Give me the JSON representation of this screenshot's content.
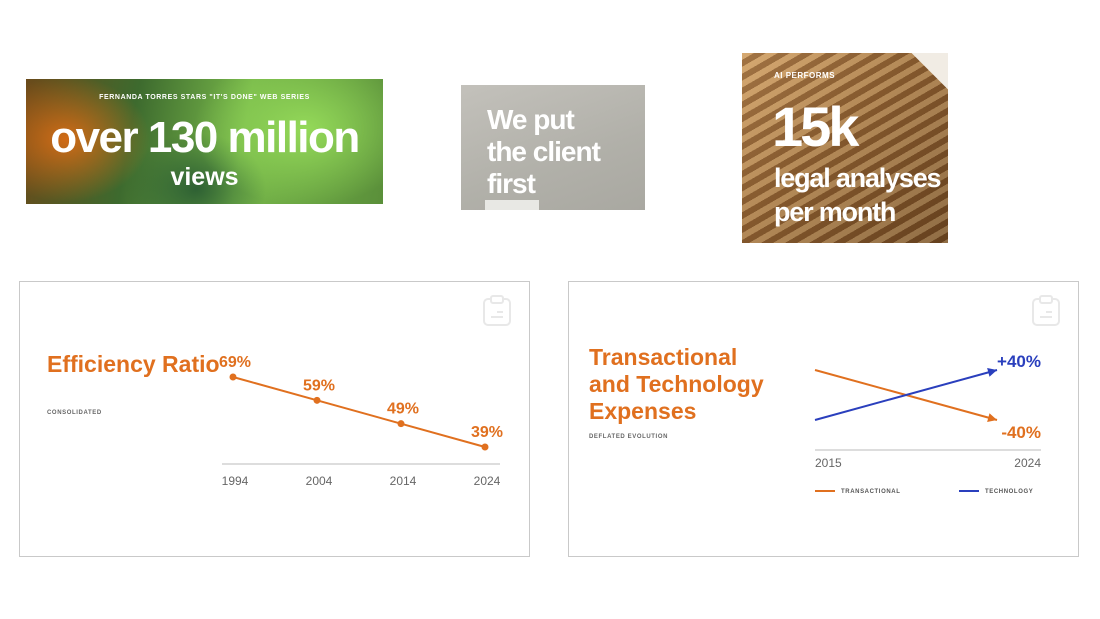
{
  "tiles": {
    "views": {
      "kicker": "FERNANDA TORRES STARS \"IT'S DONE\" WEB SERIES",
      "headline": "over 130 million",
      "subline": "views"
    },
    "client": {
      "lines": [
        "We put",
        "the client",
        "first"
      ]
    },
    "legal": {
      "kicker": "AI PERFORMS",
      "headline": "15k",
      "lines": [
        "legal analyses",
        "per month"
      ]
    }
  },
  "colors": {
    "orange": "#e0701f",
    "blue": "#2a3fbd",
    "axis": "#bbbbbb"
  },
  "chart_data": [
    {
      "type": "line",
      "title": "Efficiency Ratio",
      "subtitle": "CONSOLIDATED",
      "categories": [
        "1994",
        "2004",
        "2014",
        "2024"
      ],
      "series": [
        {
          "values": [
            69,
            59,
            49,
            39
          ],
          "labels": [
            "69%",
            "59%",
            "49%",
            "39%"
          ],
          "color": "#e0701f"
        }
      ],
      "ylim": [
        35,
        75
      ],
      "grid": false,
      "legend": "none"
    },
    {
      "type": "line",
      "title": "Transactional and Technology Expenses",
      "title_lines": [
        "Transactional",
        "and Technology",
        "Expenses"
      ],
      "subtitle": "DEFLATED EVOLUTION",
      "x_ticks": [
        "2015",
        "2024"
      ],
      "series": [
        {
          "name": "TRANSACTIONAL",
          "values": [
            0,
            -40
          ],
          "end_label": "-40%",
          "color": "#e0701f"
        },
        {
          "name": "TECHNOLOGY",
          "values": [
            -40,
            0
          ],
          "end_label": "+40%",
          "color": "#2a3fbd"
        }
      ],
      "grid": false,
      "legend": "bottom"
    }
  ]
}
